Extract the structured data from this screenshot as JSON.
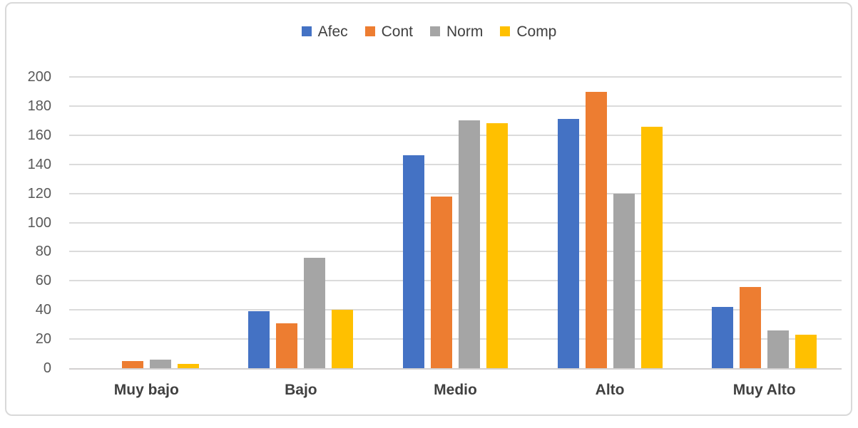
{
  "chart_data": {
    "type": "bar",
    "title": "",
    "xlabel": "",
    "ylabel": "",
    "categories": [
      "Muy bajo",
      "Bajo",
      "Medio",
      "Alto",
      "Muy Alto"
    ],
    "series": [
      {
        "name": "Afec",
        "color": "#4472C4",
        "values": [
          0,
          39,
          146,
          171,
          42
        ]
      },
      {
        "name": "Cont",
        "color": "#ED7D31",
        "values": [
          5,
          31,
          118,
          190,
          56
        ]
      },
      {
        "name": "Norm",
        "color": "#A5A5A5",
        "values": [
          6,
          76,
          170,
          120,
          26
        ]
      },
      {
        "name": "Comp",
        "color": "#FFC000",
        "values": [
          3,
          40,
          168,
          166,
          23
        ]
      }
    ],
    "ylim": [
      0,
      200
    ],
    "ytick_step": 20,
    "ytick_labels": [
      "0",
      "20",
      "40",
      "60",
      "80",
      "100",
      "120",
      "140",
      "160",
      "180",
      "200"
    ],
    "grid": true,
    "legend_position": "top",
    "colors": {
      "gridline": "#DBDBDB",
      "axis_line": "#D2D0D0",
      "tick_label_text": "#595959",
      "category_label_text": "#404040",
      "legend_text": "#404040",
      "frame_border": "#D9D9D9",
      "background": "#FFFFFF"
    }
  }
}
